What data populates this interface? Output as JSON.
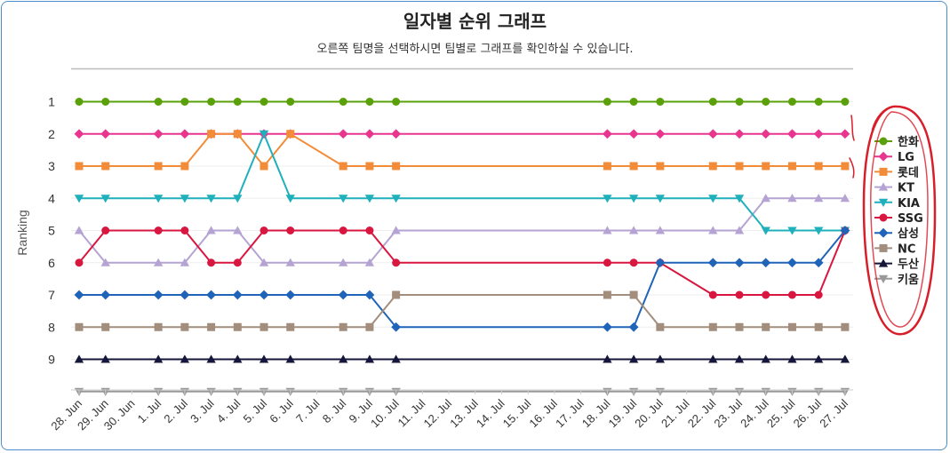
{
  "chart_data": {
    "type": "line",
    "title": "일자별 순위 그래프",
    "subtitle": "오른쪽 팀명을 선택하시면 팀별로 그래프를 확인하실 수 있습니다.",
    "ylabel": "Ranking",
    "yticks": [
      1,
      2,
      3,
      4,
      5,
      6,
      7,
      8,
      9
    ],
    "ylim": [
      1,
      10
    ],
    "categories": [
      "28. Jun",
      "29. Jun",
      "30. Jun",
      "1. Jul",
      "2. Jul",
      "3. Jul",
      "4. Jul",
      "5. Jul",
      "6. Jul",
      "7. Jul",
      "8. Jul",
      "9. Jul",
      "10. Jul",
      "11. Jul",
      "12. Jul",
      "13. Jul",
      "14. Jul",
      "15. Jul",
      "16. Jul",
      "17. Jul",
      "18. Jul",
      "19. Jul",
      "20. Jul",
      "21. Jul",
      "22. Jul",
      "23. Jul",
      "24. Jul",
      "25. Jul",
      "26. Jul",
      "27. Jul"
    ],
    "legend_position": "right",
    "series": [
      {
        "name": "한화",
        "color": "#5aa00a",
        "marker": "circle",
        "values": [
          1,
          1,
          null,
          1,
          1,
          1,
          1,
          1,
          1,
          null,
          1,
          1,
          1,
          null,
          null,
          null,
          null,
          null,
          null,
          null,
          1,
          1,
          1,
          null,
          1,
          1,
          1,
          1,
          1,
          1
        ]
      },
      {
        "name": "LG",
        "color": "#e8368f",
        "marker": "diamond",
        "values": [
          2,
          2,
          null,
          2,
          2,
          2,
          2,
          2,
          2,
          null,
          2,
          2,
          2,
          null,
          null,
          null,
          null,
          null,
          null,
          null,
          2,
          2,
          2,
          null,
          2,
          2,
          2,
          2,
          2,
          2
        ]
      },
      {
        "name": "롯데",
        "color": "#f28c38",
        "marker": "square",
        "values": [
          3,
          3,
          null,
          3,
          3,
          2,
          2,
          3,
          2,
          null,
          3,
          3,
          3,
          null,
          null,
          null,
          null,
          null,
          null,
          null,
          3,
          3,
          3,
          null,
          3,
          3,
          3,
          3,
          3,
          3
        ]
      },
      {
        "name": "KT",
        "color": "#b4a3d3",
        "marker": "triangle",
        "values": [
          5,
          6,
          null,
          6,
          6,
          5,
          5,
          6,
          6,
          null,
          6,
          6,
          5,
          null,
          null,
          null,
          null,
          null,
          null,
          null,
          5,
          5,
          5,
          null,
          5,
          5,
          4,
          4,
          4,
          4
        ]
      },
      {
        "name": "KIA",
        "color": "#1fb0bc",
        "marker": "triangle-down",
        "values": [
          4,
          4,
          null,
          4,
          4,
          4,
          4,
          2,
          4,
          null,
          4,
          4,
          4,
          null,
          null,
          null,
          null,
          null,
          null,
          null,
          4,
          4,
          4,
          null,
          4,
          4,
          5,
          5,
          5,
          5
        ]
      },
      {
        "name": "SSG",
        "color": "#d8163f",
        "marker": "circle",
        "values": [
          6,
          5,
          null,
          5,
          5,
          6,
          6,
          5,
          5,
          null,
          5,
          5,
          6,
          null,
          null,
          null,
          null,
          null,
          null,
          null,
          6,
          6,
          6,
          null,
          7,
          7,
          7,
          7,
          7,
          5
        ]
      },
      {
        "name": "삼성",
        "color": "#1f64b8",
        "marker": "diamond",
        "values": [
          7,
          7,
          null,
          7,
          7,
          7,
          7,
          7,
          7,
          null,
          7,
          7,
          8,
          null,
          null,
          null,
          null,
          null,
          null,
          null,
          8,
          8,
          6,
          null,
          6,
          6,
          6,
          6,
          6,
          5
        ]
      },
      {
        "name": "NC",
        "color": "#a38d7c",
        "marker": "square",
        "values": [
          8,
          8,
          null,
          8,
          8,
          8,
          8,
          8,
          8,
          null,
          8,
          8,
          7,
          null,
          null,
          null,
          null,
          null,
          null,
          null,
          7,
          7,
          8,
          null,
          8,
          8,
          8,
          8,
          8,
          8
        ]
      },
      {
        "name": "두산",
        "color": "#15163a",
        "marker": "triangle",
        "values": [
          9,
          9,
          null,
          9,
          9,
          9,
          9,
          9,
          9,
          null,
          9,
          9,
          9,
          null,
          null,
          null,
          null,
          null,
          null,
          null,
          9,
          9,
          9,
          null,
          9,
          9,
          9,
          9,
          9,
          9
        ]
      },
      {
        "name": "키움",
        "color": "#999999",
        "marker": "triangle-down",
        "values": [
          10,
          10,
          null,
          10,
          10,
          10,
          10,
          10,
          10,
          null,
          10,
          10,
          10,
          null,
          null,
          null,
          null,
          null,
          null,
          null,
          10,
          10,
          10,
          null,
          10,
          10,
          10,
          10,
          10,
          10
        ]
      }
    ]
  }
}
